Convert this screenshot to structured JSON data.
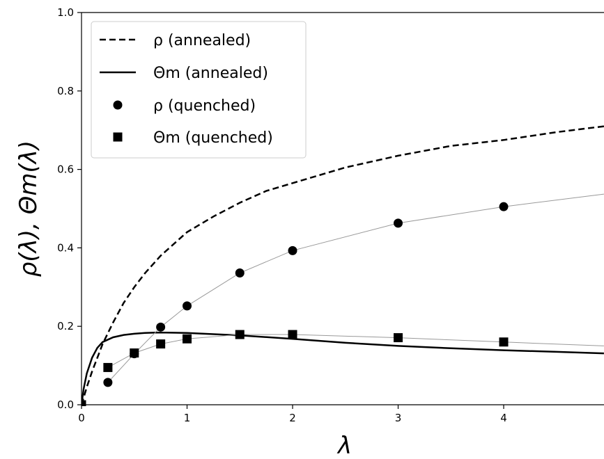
{
  "chart_data": {
    "type": "line",
    "xlabel": "λ",
    "ylabel": "ρ(λ), Θm(λ)",
    "xlim": [
      0,
      4.95
    ],
    "ylim": [
      0,
      1.0
    ],
    "x_ticks": [
      "0",
      "1",
      "2",
      "3",
      "4"
    ],
    "y_ticks": [
      "0.0",
      "0.2",
      "0.4",
      "0.6",
      "0.8",
      "1.0"
    ],
    "grid": false,
    "legend_position": "upper-left",
    "series": [
      {
        "name": "ρ (annealed)",
        "style": "dashed-line",
        "color": "#000000",
        "x": [
          0,
          0.05,
          0.1,
          0.2,
          0.3,
          0.4,
          0.5,
          0.6,
          0.75,
          1.0,
          1.25,
          1.5,
          1.75,
          2.0,
          2.5,
          3.0,
          3.5,
          4.0,
          4.5,
          4.95
        ],
        "y": [
          0,
          0.045,
          0.085,
          0.155,
          0.21,
          0.26,
          0.3,
          0.335,
          0.38,
          0.44,
          0.48,
          0.515,
          0.545,
          0.565,
          0.605,
          0.635,
          0.66,
          0.675,
          0.695,
          0.71
        ]
      },
      {
        "name": "Θm (annealed)",
        "style": "solid-line",
        "color": "#000000",
        "x": [
          0,
          0.02,
          0.05,
          0.1,
          0.15,
          0.2,
          0.3,
          0.4,
          0.5,
          0.6,
          0.7,
          0.8,
          1.0,
          1.25,
          1.5,
          2.0,
          2.5,
          3.0,
          3.5,
          4.0,
          4.5,
          4.95
        ],
        "y": [
          0,
          0.04,
          0.08,
          0.12,
          0.145,
          0.16,
          0.172,
          0.178,
          0.181,
          0.183,
          0.184,
          0.184,
          0.183,
          0.18,
          0.177,
          0.168,
          0.158,
          0.15,
          0.144,
          0.139,
          0.135,
          0.131
        ]
      },
      {
        "name": "ρ (quenched)",
        "style": "circle-markers",
        "color": "#000000",
        "x": [
          0,
          0.25,
          0.5,
          0.75,
          1.0,
          1.5,
          2.0,
          3.0,
          4.0
        ],
        "y": [
          0,
          0.057,
          0.13,
          0.198,
          0.252,
          0.336,
          0.393,
          0.463,
          0.505
        ],
        "fit_x": [
          0.25,
          0.5,
          0.75,
          1.0,
          1.5,
          2.0,
          3.0,
          4.0,
          4.95
        ],
        "fit_y": [
          0.057,
          0.13,
          0.198,
          0.252,
          0.336,
          0.393,
          0.463,
          0.505,
          0.537
        ]
      },
      {
        "name": "Θm (quenched)",
        "style": "square-markers",
        "color": "#000000",
        "x": [
          0,
          0.25,
          0.5,
          0.75,
          1.0,
          1.5,
          2.0,
          3.0,
          4.0
        ],
        "y": [
          0,
          0.095,
          0.132,
          0.155,
          0.168,
          0.179,
          0.179,
          0.171,
          0.16
        ],
        "fit_x": [
          0.25,
          0.5,
          0.75,
          1.0,
          1.5,
          2.0,
          3.0,
          4.0,
          4.95
        ],
        "fit_y": [
          0.095,
          0.132,
          0.155,
          0.168,
          0.179,
          0.179,
          0.171,
          0.16,
          0.15
        ]
      }
    ]
  },
  "legend": {
    "items": [
      {
        "text": "ρ (annealed)",
        "symbol": "dash"
      },
      {
        "text": "Θm (annealed)",
        "symbol": "line"
      },
      {
        "text": "ρ (quenched)",
        "symbol": "circle"
      },
      {
        "text": "Θm (quenched)",
        "symbol": "square"
      }
    ]
  }
}
